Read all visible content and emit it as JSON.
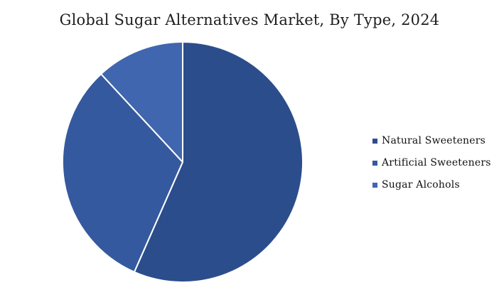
{
  "chart_data": {
    "type": "pie",
    "title": "Global Sugar Alternatives Market, By Type, 2024",
    "categories": [
      "Natural Sweeteners",
      "Artificial Sweeteners",
      "Sugar Alcohols"
    ],
    "values": [
      56.6,
      31.5,
      11.9
    ],
    "colors": [
      "#2C4D8C",
      "#35599E",
      "#4066AF"
    ],
    "slice_border_color": "#FFFFFF",
    "start_angle_deg": 0,
    "direction": "clockwise",
    "legend_position": "right",
    "data_labels_shown": false
  }
}
